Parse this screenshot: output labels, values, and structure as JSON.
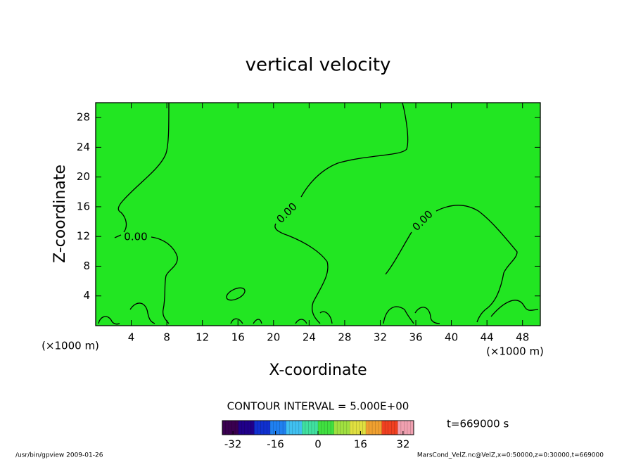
{
  "chart_data": {
    "type": "contour",
    "title": "vertical velocity",
    "x_label": "X-coordinate",
    "y_label": "Z-coordinate",
    "x_unit_left": "(×1000 m)",
    "x_unit_right": "(×1000 m)",
    "xlim": [
      0,
      50
    ],
    "xticks": [
      4,
      8,
      12,
      16,
      20,
      24,
      28,
      32,
      36,
      40,
      44,
      48
    ],
    "ylim": [
      0,
      30
    ],
    "yticks": [
      4,
      8,
      12,
      16,
      20,
      24,
      28
    ],
    "fill_color": "#22e622",
    "contour_labels": [
      "0.00",
      "0.00",
      "0.00"
    ],
    "contour_interval_text": "CONTOUR INTERVAL = 5.000E+00",
    "time_text": "t=669000 s",
    "colorbar": {
      "lim": [
        -36,
        36
      ],
      "ticks": [
        -32,
        -16,
        0,
        16,
        32
      ],
      "colors": [
        "#3a0050",
        "#20008a",
        "#1030d0",
        "#2080f0",
        "#40c0f0",
        "#40e0a0",
        "#40e040",
        "#a0e040",
        "#e0e040",
        "#f0a030",
        "#f04020",
        "#f0a0b0"
      ]
    },
    "footer_left": "/usr/bin/gpview  2009-01-26",
    "footer_right": "MarsCond_VelZ.nc@VelZ,x=0:50000,z=0:30000,t=669000"
  }
}
